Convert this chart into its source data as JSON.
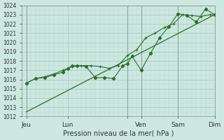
{
  "xlabel": "Pression niveau de la mer( hPa )",
  "bg_color": "#cce8e0",
  "grid_major_color": "#a0c8be",
  "grid_minor_color": "#b8d8d0",
  "line_color": "#2d6e2d",
  "vline_color": "#4a6a4a",
  "ylim": [
    1012,
    1024
  ],
  "yticks": [
    1012,
    1013,
    1014,
    1015,
    1016,
    1017,
    1018,
    1019,
    1020,
    1021,
    1022,
    1023,
    1024
  ],
  "xlim": [
    0,
    84
  ],
  "xtick_positions": [
    2,
    20,
    46,
    52,
    68,
    84
  ],
  "xtick_labels": [
    "Jeu",
    "Lun",
    "",
    "Ven",
    "Sam",
    "Dim"
  ],
  "vline_positions": [
    2,
    46,
    52,
    68,
    84
  ],
  "line_trend": {
    "x": [
      2,
      84
    ],
    "y": [
      1012.5,
      1023.0
    ]
  },
  "line_markers": {
    "x": [
      2,
      6,
      10,
      14,
      18,
      20,
      22,
      24,
      28,
      32,
      36,
      40,
      44,
      46,
      48,
      52,
      56,
      60,
      64,
      68,
      72,
      76,
      80,
      84
    ],
    "y": [
      1015.6,
      1016.1,
      1016.2,
      1016.5,
      1016.8,
      1017.2,
      1017.5,
      1017.5,
      1017.4,
      1016.2,
      1016.2,
      1016.1,
      1017.5,
      1017.7,
      1018.5,
      1017.0,
      1018.8,
      1020.5,
      1021.7,
      1023.1,
      1022.9,
      1022.2,
      1023.6,
      1023.0
    ]
  },
  "line_plus": {
    "x": [
      2,
      6,
      10,
      14,
      18,
      22,
      26,
      30,
      34,
      38,
      42,
      46,
      50,
      54,
      58,
      62,
      66,
      70,
      74,
      78,
      82,
      84
    ],
    "y": [
      1015.6,
      1016.1,
      1016.3,
      1016.6,
      1017.0,
      1017.4,
      1017.5,
      1017.5,
      1017.4,
      1017.2,
      1017.5,
      1018.6,
      1019.2,
      1020.5,
      1021.0,
      1021.6,
      1022.0,
      1023.0,
      1022.9,
      1022.8,
      1023.0,
      1023.0
    ]
  }
}
